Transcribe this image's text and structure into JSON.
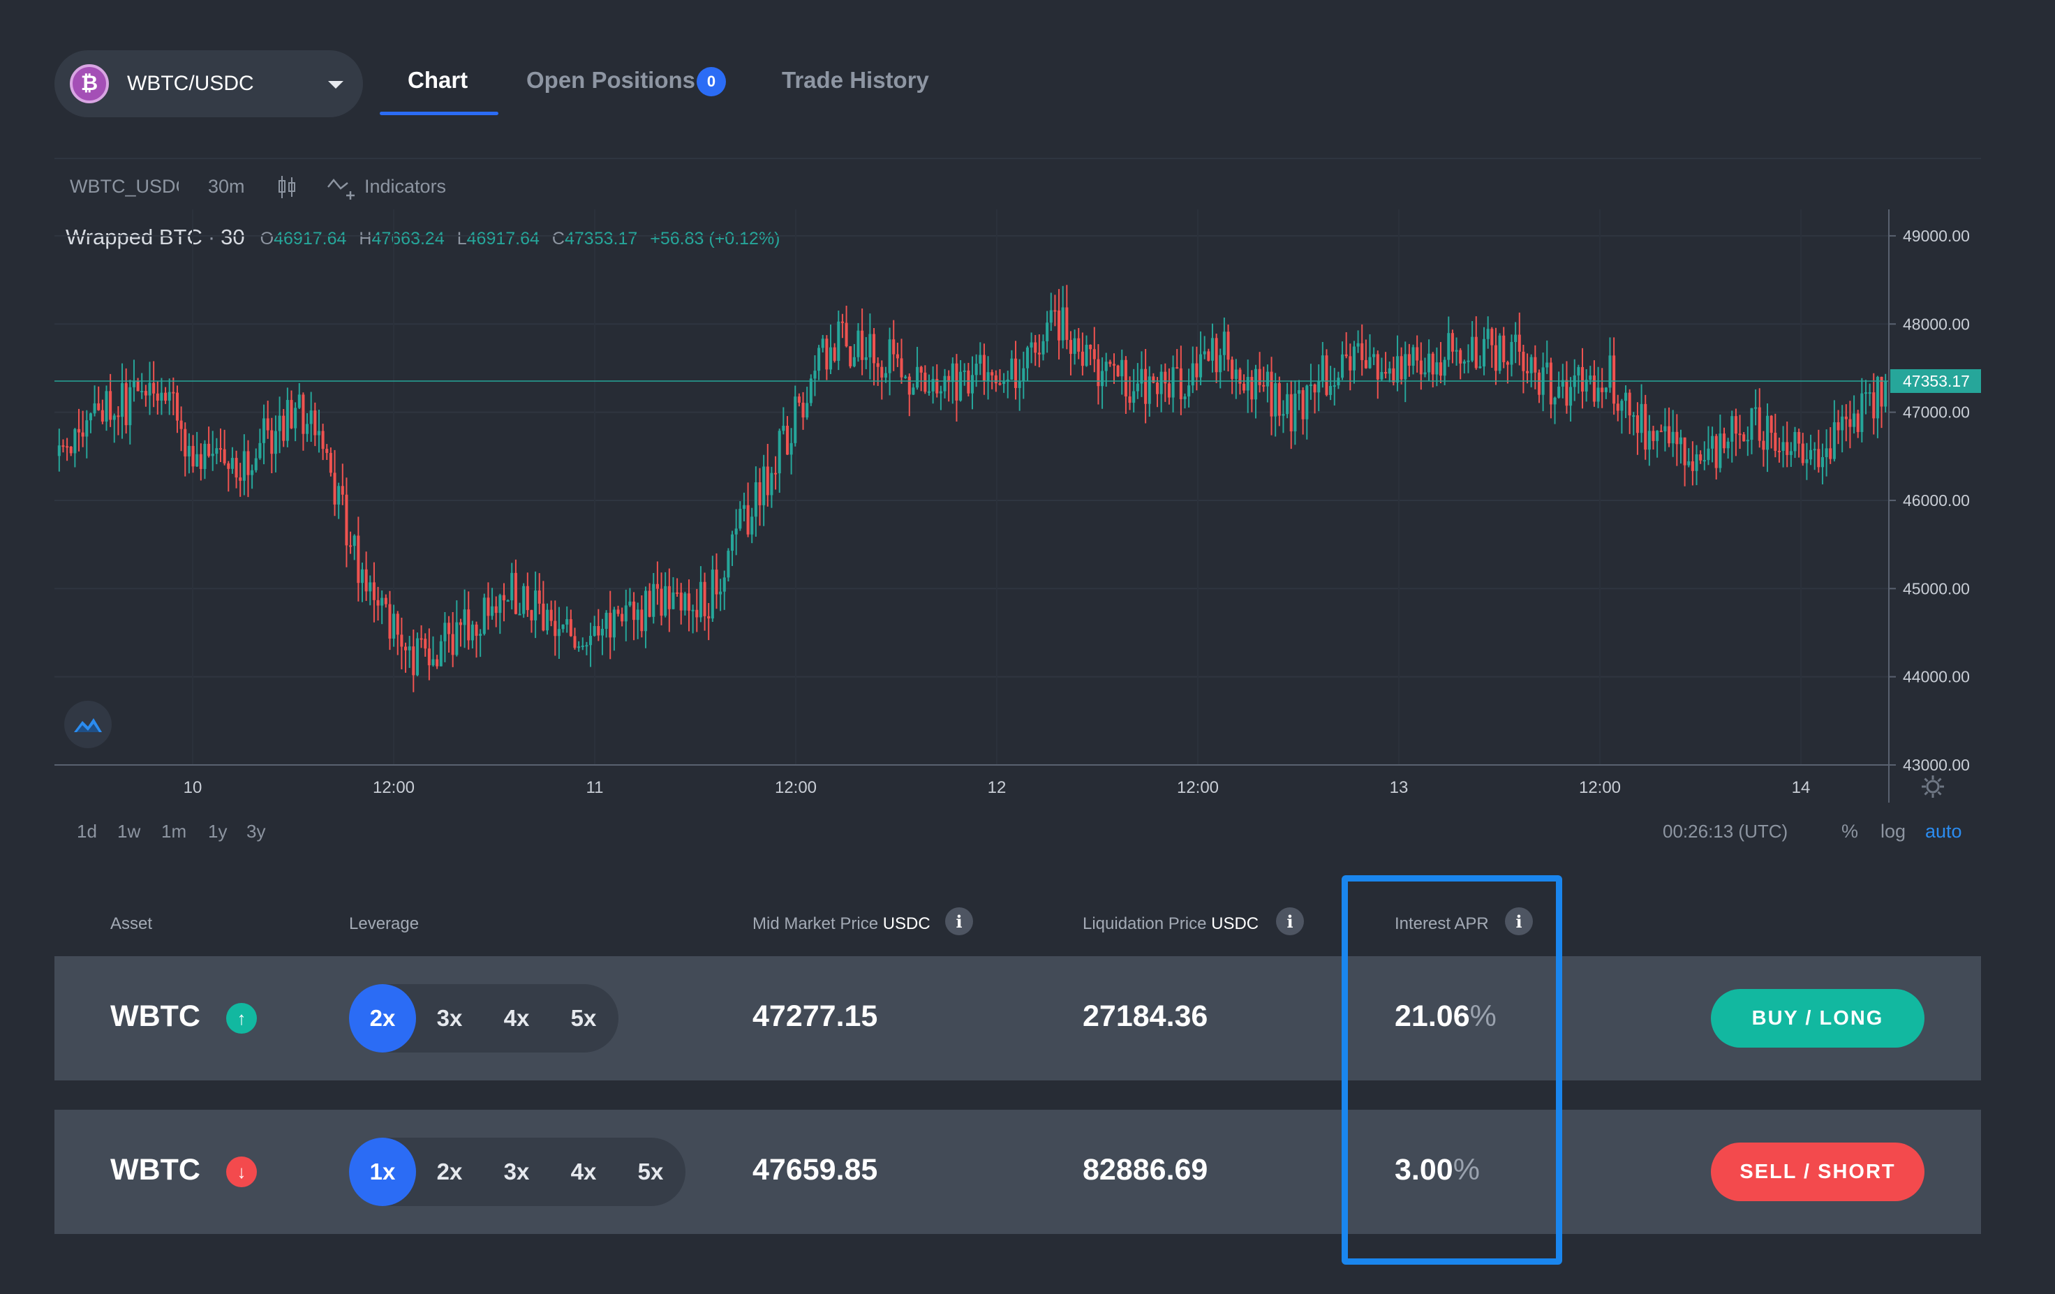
{
  "header": {
    "pair": "WBTC/USDC",
    "pair_icon_glyph": "₿",
    "tabs": [
      {
        "label": "Chart"
      },
      {
        "label": "Open Positions",
        "badge": "0"
      },
      {
        "label": "Trade History"
      }
    ]
  },
  "chart_toolbar": {
    "symbol": "WBTC_USDC",
    "interval": "30m",
    "indicators_label": "Indicators"
  },
  "legend": {
    "name": "Wrapped BTC",
    "separator": "·",
    "interval": "30",
    "o_key": "O",
    "o_val": "46917.64",
    "h_key": "H",
    "h_val": "47663.24",
    "l_key": "L",
    "l_val": "46917.64",
    "c_key": "C",
    "c_val": "47353.17",
    "change": "+56.83 (+0.12%)"
  },
  "chart_data": {
    "type": "candlestick",
    "price_ticks": [
      "49000.00",
      "48000.00",
      "47000.00",
      "46000.00",
      "45000.00",
      "44000.00",
      "43000.00"
    ],
    "ylim": [
      43000,
      49300
    ],
    "last_price_label": "47353.17",
    "last_price": 47353.17,
    "time_ticks": [
      "10",
      "12:00",
      "11",
      "12:00",
      "12",
      "12:00",
      "13",
      "12:00",
      "14"
    ],
    "anchors": [
      [
        0,
        46600
      ],
      [
        14,
        47050
      ],
      [
        26,
        47300
      ],
      [
        33,
        46600
      ],
      [
        42,
        46300
      ],
      [
        52,
        46700
      ],
      [
        62,
        47000
      ],
      [
        68,
        46400
      ],
      [
        76,
        45300
      ],
      [
        90,
        44200
      ],
      [
        102,
        44500
      ],
      [
        115,
        45000
      ],
      [
        128,
        44500
      ],
      [
        136,
        44400
      ],
      [
        150,
        44800
      ],
      [
        165,
        44900
      ],
      [
        180,
        46300
      ],
      [
        196,
        47800
      ],
      [
        210,
        47600
      ],
      [
        222,
        47200
      ],
      [
        234,
        47500
      ],
      [
        242,
        47400
      ],
      [
        252,
        48100
      ],
      [
        264,
        47500
      ],
      [
        280,
        47200
      ],
      [
        296,
        47700
      ],
      [
        312,
        47000
      ],
      [
        326,
        47600
      ],
      [
        340,
        47400
      ],
      [
        354,
        47700
      ],
      [
        368,
        47700
      ],
      [
        380,
        47300
      ],
      [
        394,
        47400
      ],
      [
        404,
        46700
      ],
      [
        416,
        46400
      ],
      [
        428,
        46900
      ],
      [
        438,
        46700
      ],
      [
        448,
        46600
      ],
      [
        458,
        47000
      ],
      [
        464,
        47353
      ]
    ],
    "colors": {
      "up": "#26a69a",
      "down": "#ef5350"
    }
  },
  "chart_footer": {
    "ranges": [
      "1d",
      "1w",
      "1m",
      "1y",
      "3y"
    ],
    "clock": "00:26:13 (UTC)",
    "scale_percent": "%",
    "scale_log": "log",
    "scale_auto": "auto"
  },
  "table": {
    "headers": {
      "asset": "Asset",
      "leverage": "Leverage",
      "mid_price": "Mid Market Price",
      "mid_price_unit": "USDC",
      "liq_price": "Liquidation Price",
      "liq_price_unit": "USDC",
      "interest": "Interest APR"
    },
    "info_glyph": "i",
    "rows": [
      {
        "asset": "WBTC",
        "direction": "up",
        "arrow": "↑",
        "leverage_options": [
          "2x",
          "3x",
          "4x",
          "5x"
        ],
        "leverage_selected": "2x",
        "mid_price": "47277.15",
        "liq_price": "27184.36",
        "apr_value": "21.06",
        "apr_unit": "%",
        "action": "BUY / LONG"
      },
      {
        "asset": "WBTC",
        "direction": "down",
        "arrow": "↓",
        "leverage_options": [
          "1x",
          "2x",
          "3x",
          "4x",
          "5x"
        ],
        "leverage_selected": "1x",
        "mid_price": "47659.85",
        "liq_price": "82886.69",
        "apr_value": "3.00",
        "apr_unit": "%",
        "action": "SELL / SHORT"
      }
    ]
  },
  "colors": {
    "background": "#272c35",
    "accent": "#2b6cf5",
    "up": "#12b8a0",
    "down": "#f34a4d",
    "highlight": "#1a86ee"
  }
}
